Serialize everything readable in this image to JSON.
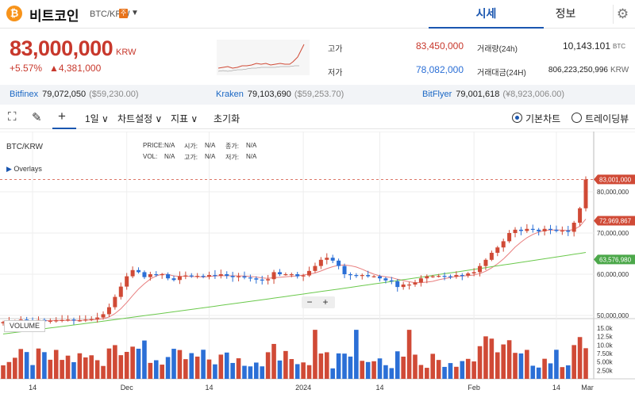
{
  "header": {
    "coin_logo": "₿",
    "coin_name": "비트코인",
    "pair": "BTC/KRW",
    "flag": "주",
    "tabs": [
      {
        "label": "시세",
        "active": true
      },
      {
        "label": "정보",
        "active": false
      }
    ]
  },
  "price": {
    "value": "83,000,000",
    "unit": "KRW",
    "change_pct": "+5.57%",
    "change_abs": "▲4,381,000"
  },
  "stats": {
    "high_label": "고가",
    "high": "83,450,000",
    "low_label": "저가",
    "low": "78,082,000",
    "vol_label": "거래량(24h)",
    "vol": "10,143.101",
    "vol_unit": "BTC",
    "amount_label": "거래대금(24H)",
    "amount": "806,223,250,996",
    "amount_unit": "KRW"
  },
  "exchanges": [
    {
      "name": "Bitfinex",
      "price": "79,072,050",
      "usd": "($59,230.00)"
    },
    {
      "name": "Kraken",
      "price": "79,103,690",
      "usd": "($59,253.70)"
    },
    {
      "name": "BitFlyer",
      "price": "79,001,618",
      "usd": "(¥8,923,006.00)"
    }
  ],
  "toolbar": {
    "interval": "1일 ∨",
    "chart_settings": "차트설정 ∨",
    "indicators": "지표 ∨",
    "reset": "초기화",
    "mode_basic": "기본차트",
    "mode_trading": "트레이딩뷰"
  },
  "chart": {
    "symbol": "BTC/KRW",
    "overlays": "Overlays",
    "price_label": "PRICE:",
    "price_val": "N/A",
    "open_label": "시가:",
    "open_val": "N/A",
    "close_label": "종가:",
    "close_val": "N/A",
    "vol_label": "VOL:",
    "vol_val": "N/A",
    "high_label": "고가:",
    "high_val": "N/A",
    "low_label": "저가:",
    "low_val": "N/A",
    "volume_title": "VOLUME",
    "zoom_out": "−",
    "zoom_in": "+"
  },
  "chart_data": {
    "type": "candlestick",
    "price_axis": [
      "80,000,000",
      "70,000,000",
      "60,000,000",
      "50,000,000"
    ],
    "price_axis_values": [
      80000000,
      70000000,
      60000000,
      50000000
    ],
    "last_price_tag": "83,001,000",
    "ma_short_tag": "72,969,867",
    "ma_long_tag": "63,576,980",
    "volume_axis": [
      "15.0k",
      "12.5k",
      "10.0k",
      "7.50k",
      "5.00k",
      "2.50k"
    ],
    "volume_axis_values": [
      15000,
      12500,
      10000,
      7500,
      5000,
      2500
    ],
    "x_labels": [
      "14",
      "Dec",
      "14",
      "2024",
      "14",
      "Feb",
      "14",
      "Mar"
    ],
    "colors": {
      "up": "#d04a36",
      "down": "#2b6fd6",
      "ma_short": "#e87e7e",
      "ma_long": "#6bc94c",
      "ma_short_tag": "#d04a36",
      "ma_long_tag": "#4ca84a",
      "last_tag": "#d04a36"
    },
    "closes": [
      48.4,
      48.5,
      48.6,
      49.0,
      48.8,
      48.7,
      48.9,
      48.6,
      48.7,
      48.8,
      48.9,
      49.0,
      48.8,
      48.8,
      49.0,
      49.1,
      49.5,
      50.3,
      52.0,
      54.5,
      57.0,
      59.5,
      61.0,
      60.5,
      59.3,
      60.0,
      59.8,
      60.0,
      59.0,
      58.6,
      59.5,
      59.7,
      59.5,
      59.6,
      59.4,
      59.8,
      59.6,
      60.0,
      59.6,
      59.3,
      59.5,
      59.2,
      59.0,
      58.7,
      58.5,
      58.8,
      60.5,
      60.0,
      60.0,
      60.0,
      59.5,
      59.7,
      60.8,
      62.0,
      63.5,
      64.0,
      63.3,
      62.0,
      60.0,
      59.8,
      59.6,
      59.8,
      59.5,
      59.5,
      59.0,
      58.5,
      58.3,
      56.9,
      57.5,
      57.5,
      58.0,
      59.0,
      59.5,
      59.5,
      59.6,
      59.5,
      59.4,
      59.8,
      59.7,
      60.2,
      60.5,
      62.0,
      63.5,
      65.2,
      66.5,
      68.0,
      70.0,
      70.8,
      70.5,
      71.0,
      70.8,
      70.4,
      71.0,
      70.8,
      70.5,
      70.6,
      70.3,
      72.5,
      76.0,
      83.0
    ]
  }
}
